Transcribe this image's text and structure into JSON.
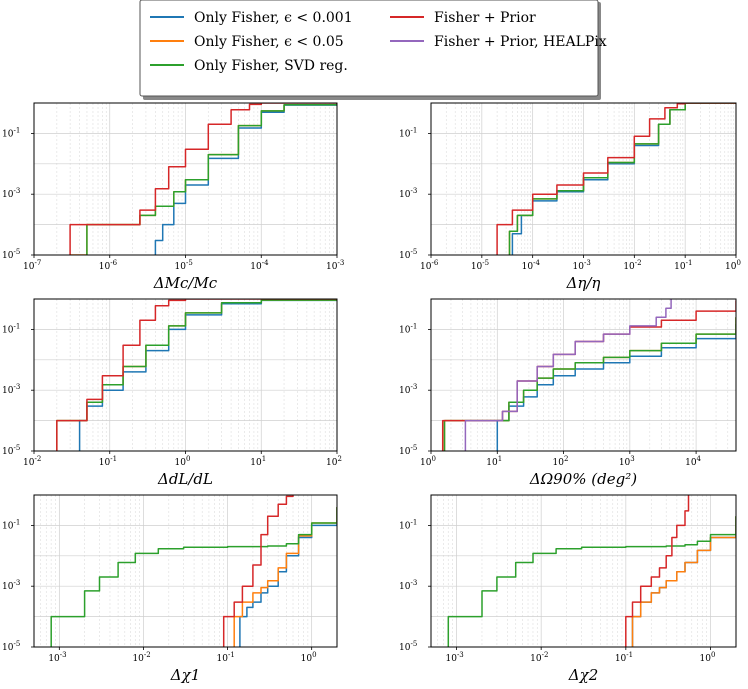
{
  "legend": {
    "entries": [
      {
        "label": "Only Fisher, ϵ < 0.001",
        "color": "#1f77b4"
      },
      {
        "label": "Only Fisher, ϵ < 0.05",
        "color": "#ff7f0e"
      },
      {
        "label": "Only Fisher, SVD reg.",
        "color": "#2ca02c"
      },
      {
        "label": "Fisher + Prior",
        "color": "#d62728"
      },
      {
        "label": "Fisher + Prior, HEALPix",
        "color": "#9467bd"
      }
    ]
  },
  "chart_data": [
    {
      "type": "line",
      "xlabel": "ΔMc/Mc",
      "xscale": "log",
      "yscale": "log",
      "xlim": [
        1e-07,
        0.001
      ],
      "ylim": [
        1e-05,
        1
      ],
      "x_tick_labels": [
        "10^-7",
        "10^-6",
        "10^-5",
        "10^-4",
        "10^-3"
      ],
      "y_tick_labels": [
        "10^-5",
        "10^-3",
        "10^-1"
      ],
      "grid": true,
      "series": [
        {
          "name": "Only Fisher, ϵ < 0.001",
          "color": "#1f77b4",
          "x": [
            4e-06,
            4e-06,
            5e-06,
            7e-06,
            1e-05,
            2e-05,
            5e-05,
            0.0001,
            0.0002,
            0.001
          ],
          "y": [
            1e-05,
            3e-05,
            0.0001,
            0.0005,
            0.002,
            0.015,
            0.15,
            0.5,
            0.85,
            1.0
          ]
        },
        {
          "name": "Only Fisher, ϵ < 0.05",
          "color": "#ff7f0e",
          "x": [
            3e-07,
            5e-07,
            1e-06,
            2e-06,
            2.5e-06,
            4e-06,
            7e-06,
            1e-05,
            2e-05,
            5e-05,
            0.0001,
            0.0002,
            0.001
          ],
          "y": [
            1e-05,
            0.0001,
            0.0001,
            0.0001,
            0.0002,
            0.0004,
            0.0012,
            0.003,
            0.02,
            0.18,
            0.55,
            0.88,
            1.0
          ]
        },
        {
          "name": "Only Fisher, SVD reg.",
          "color": "#2ca02c",
          "x": [
            5e-07,
            5e-07,
            1e-06,
            2e-06,
            2.5e-06,
            4e-06,
            7e-06,
            1e-05,
            2e-05,
            5e-05,
            0.0001,
            0.0002,
            0.001
          ],
          "y": [
            1e-05,
            0.0001,
            0.0001,
            0.0001,
            0.0002,
            0.0004,
            0.0012,
            0.003,
            0.02,
            0.18,
            0.55,
            0.88,
            1.0
          ]
        },
        {
          "name": "Fisher + Prior",
          "color": "#d62728",
          "x": [
            3e-07,
            3e-07,
            1e-06,
            2e-06,
            2.5e-06,
            4e-06,
            6e-06,
            1e-05,
            2e-05,
            4e-05,
            7e-05,
            0.0001,
            0.0003,
            0.001
          ],
          "y": [
            1e-05,
            0.0001,
            0.0001,
            0.0001,
            0.0003,
            0.0015,
            0.008,
            0.03,
            0.2,
            0.6,
            0.9,
            1.0,
            1.0,
            1.0
          ]
        }
      ]
    },
    {
      "type": "line",
      "xlabel": "Δη/η",
      "xscale": "log",
      "yscale": "log",
      "xlim": [
        1e-06,
        1
      ],
      "ylim": [
        1e-05,
        1
      ],
      "x_tick_labels": [
        "10^-6",
        "10^-5",
        "10^-4",
        "10^-3",
        "10^-2",
        "10^-1",
        "10^0"
      ],
      "y_tick_labels": [
        "10^-5",
        "10^-3",
        "10^-1"
      ],
      "grid": true,
      "series": [
        {
          "name": "Only Fisher, ϵ < 0.001",
          "color": "#1f77b4",
          "x": [
            4e-05,
            4e-05,
            6e-05,
            0.0001,
            0.0003,
            0.001,
            0.003,
            0.01,
            0.03,
            0.05,
            0.1,
            1
          ],
          "y": [
            1e-05,
            5e-05,
            0.0002,
            0.0006,
            0.0012,
            0.003,
            0.01,
            0.04,
            0.2,
            0.6,
            1.0,
            1.0
          ]
        },
        {
          "name": "Only Fisher, ϵ < 0.05",
          "color": "#ff7f0e",
          "x": [
            3.5e-05,
            3.5e-05,
            5e-05,
            0.0001,
            0.0003,
            0.001,
            0.003,
            0.01,
            0.03,
            0.05,
            0.1,
            1
          ],
          "y": [
            1e-05,
            6e-05,
            0.0002,
            0.0007,
            0.0013,
            0.0035,
            0.011,
            0.045,
            0.2,
            0.6,
            1.0,
            1.0
          ]
        },
        {
          "name": "Only Fisher, SVD reg.",
          "color": "#2ca02c",
          "x": [
            3.5e-05,
            3.5e-05,
            5e-05,
            0.0001,
            0.0003,
            0.001,
            0.003,
            0.01,
            0.03,
            0.05,
            0.1,
            1
          ],
          "y": [
            1e-05,
            6e-05,
            0.0002,
            0.0007,
            0.0013,
            0.0035,
            0.011,
            0.045,
            0.2,
            0.6,
            1.0,
            1.0
          ]
        },
        {
          "name": "Fisher + Prior",
          "color": "#d62728",
          "x": [
            2e-05,
            2e-05,
            4e-05,
            0.0001,
            0.0003,
            0.001,
            0.003,
            0.01,
            0.02,
            0.04,
            0.07,
            0.1,
            1
          ],
          "y": [
            1e-05,
            0.0001,
            0.0003,
            0.001,
            0.002,
            0.005,
            0.016,
            0.08,
            0.3,
            0.7,
            0.95,
            1.0,
            1.0
          ]
        }
      ]
    },
    {
      "type": "line",
      "xlabel": "ΔdL/dL",
      "xscale": "log",
      "yscale": "log",
      "xlim": [
        0.01,
        100
      ],
      "ylim": [
        1e-05,
        1
      ],
      "x_tick_labels": [
        "10^-2",
        "10^-1",
        "10^0",
        "10^1",
        "10^2"
      ],
      "y_tick_labels": [
        "10^-5",
        "10^-3",
        "10^-1"
      ],
      "grid": true,
      "series": [
        {
          "name": "Only Fisher, ϵ < 0.001",
          "color": "#1f77b4",
          "x": [
            0.04,
            0.04,
            0.05,
            0.08,
            0.15,
            0.3,
            0.6,
            1,
            3,
            10,
            100
          ],
          "y": [
            1e-05,
            0.0001,
            0.0003,
            0.001,
            0.004,
            0.02,
            0.1,
            0.3,
            0.7,
            0.9,
            1.0
          ]
        },
        {
          "name": "Only Fisher, ϵ < 0.05",
          "color": "#ff7f0e",
          "x": [
            0.02,
            0.02,
            0.04,
            0.05,
            0.08,
            0.15,
            0.3,
            0.6,
            1,
            3,
            10,
            100
          ],
          "y": [
            1e-05,
            0.0001,
            0.0001,
            0.0004,
            0.0015,
            0.006,
            0.03,
            0.13,
            0.35,
            0.75,
            0.92,
            1.0
          ]
        },
        {
          "name": "Only Fisher, SVD reg.",
          "color": "#2ca02c",
          "x": [
            0.02,
            0.02,
            0.04,
            0.05,
            0.08,
            0.15,
            0.3,
            0.6,
            1,
            3,
            10,
            100
          ],
          "y": [
            1e-05,
            0.0001,
            0.0001,
            0.0004,
            0.0015,
            0.006,
            0.03,
            0.13,
            0.35,
            0.75,
            0.92,
            1.0
          ]
        },
        {
          "name": "Fisher + Prior",
          "color": "#d62728",
          "x": [
            0.02,
            0.02,
            0.04,
            0.05,
            0.08,
            0.15,
            0.25,
            0.4,
            0.6,
            1,
            100
          ],
          "y": [
            1e-05,
            0.0001,
            0.0001,
            0.0005,
            0.003,
            0.03,
            0.2,
            0.6,
            0.9,
            1.0,
            1.0
          ]
        }
      ]
    },
    {
      "type": "line",
      "xlabel": "ΔΩ90% (deg²)",
      "xscale": "log",
      "yscale": "log",
      "xlim": [
        1,
        40000
      ],
      "ylim": [
        1e-05,
        1
      ],
      "x_tick_labels": [
        "10^0",
        "10^1",
        "10^2",
        "10^3",
        "10^4"
      ],
      "y_tick_labels": [
        "10^-5",
        "10^-3",
        "10^-1"
      ],
      "grid": true,
      "series": [
        {
          "name": "Only Fisher, ϵ < 0.001",
          "color": "#1f77b4",
          "x": [
            10,
            10,
            15,
            25,
            40,
            70,
            150,
            400,
            1000,
            3000,
            10000,
            40000
          ],
          "y": [
            1e-05,
            0.0001,
            0.0003,
            0.0006,
            0.0015,
            0.003,
            0.005,
            0.008,
            0.013,
            0.025,
            0.05,
            0.15
          ]
        },
        {
          "name": "Only Fisher, ϵ < 0.05",
          "color": "#ff7f0e",
          "x": [
            1.6,
            1.6,
            8,
            10,
            15,
            25,
            40,
            70,
            150,
            400,
            1000,
            3000,
            10000,
            40000
          ],
          "y": [
            1e-05,
            0.0001,
            0.0001,
            0.0001,
            0.0004,
            0.001,
            0.0025,
            0.005,
            0.008,
            0.012,
            0.02,
            0.035,
            0.07,
            0.25
          ]
        },
        {
          "name": "Only Fisher, SVD reg.",
          "color": "#2ca02c",
          "x": [
            1.6,
            1.6,
            8,
            10,
            15,
            25,
            40,
            70,
            150,
            400,
            1000,
            3000,
            10000,
            40000
          ],
          "y": [
            1e-05,
            0.0001,
            0.0001,
            0.0001,
            0.0004,
            0.001,
            0.0025,
            0.005,
            0.008,
            0.012,
            0.02,
            0.035,
            0.07,
            0.25
          ]
        },
        {
          "name": "Fisher + Prior",
          "color": "#d62728",
          "x": [
            1.5,
            1.5,
            10,
            12,
            20,
            40,
            70,
            150,
            400,
            1000,
            3000,
            10000,
            40000
          ],
          "y": [
            1e-05,
            0.0001,
            0.0001,
            0.0002,
            0.002,
            0.006,
            0.015,
            0.04,
            0.07,
            0.12,
            0.2,
            0.4,
            0.9
          ]
        },
        {
          "name": "Fisher + Prior, HEALPix",
          "color": "#9467bd",
          "x": [
            3.3,
            3.3,
            10,
            12,
            20,
            40,
            70,
            150,
            400,
            1000,
            2500,
            3500,
            4200
          ],
          "y": [
            1e-05,
            0.0001,
            0.0001,
            0.0002,
            0.002,
            0.006,
            0.015,
            0.04,
            0.07,
            0.13,
            0.25,
            0.5,
            1.0
          ]
        }
      ]
    },
    {
      "type": "line",
      "xlabel": "Δχ1",
      "xscale": "log",
      "yscale": "log",
      "xlim": [
        0.0005,
        2
      ],
      "ylim": [
        1e-05,
        1
      ],
      "x_tick_labels": [
        "10^-3",
        "10^-2",
        "10^-1",
        "10^0"
      ],
      "y_tick_labels": [
        "10^-5",
        "10^-3",
        "10^-1"
      ],
      "grid": true,
      "series": [
        {
          "name": "Only Fisher, ϵ < 0.001",
          "color": "#1f77b4",
          "x": [
            0.14,
            0.14,
            0.17,
            0.2,
            0.25,
            0.3,
            0.4,
            0.5,
            0.7,
            1,
            2
          ],
          "y": [
            1e-05,
            0.0001,
            0.0002,
            0.0003,
            0.0006,
            0.001,
            0.003,
            0.01,
            0.04,
            0.1,
            0.4
          ]
        },
        {
          "name": "Only Fisher, ϵ < 0.05",
          "color": "#ff7f0e",
          "x": [
            0.12,
            0.12,
            0.15,
            0.2,
            0.25,
            0.3,
            0.4,
            0.5,
            0.7,
            1,
            2
          ],
          "y": [
            1e-05,
            0.0001,
            0.0003,
            0.0006,
            0.0009,
            0.0015,
            0.004,
            0.012,
            0.045,
            0.12,
            0.4
          ]
        },
        {
          "name": "Only Fisher, SVD reg.",
          "color": "#2ca02c",
          "x": [
            0.0008,
            0.0008,
            0.001,
            0.002,
            0.003,
            0.005,
            0.008,
            0.015,
            0.03,
            0.1,
            0.3,
            0.5,
            0.7,
            1,
            2
          ],
          "y": [
            1e-05,
            0.0001,
            0.0001,
            0.0007,
            0.002,
            0.006,
            0.012,
            0.017,
            0.019,
            0.02,
            0.021,
            0.025,
            0.05,
            0.12,
            0.4
          ]
        },
        {
          "name": "Fisher + Prior",
          "color": "#d62728",
          "x": [
            0.09,
            0.09,
            0.12,
            0.15,
            0.2,
            0.25,
            0.3,
            0.4,
            0.5,
            0.6
          ],
          "y": [
            1e-05,
            0.0001,
            0.0003,
            0.001,
            0.005,
            0.05,
            0.2,
            0.5,
            0.9,
            1.0
          ]
        }
      ]
    },
    {
      "type": "line",
      "xlabel": "Δχ2",
      "xscale": "log",
      "yscale": "log",
      "xlim": [
        0.0005,
        2
      ],
      "ylim": [
        1e-05,
        1
      ],
      "x_tick_labels": [
        "10^-3",
        "10^-2",
        "10^-1",
        "10^0"
      ],
      "y_tick_labels": [
        "10^-5",
        "10^-3",
        "10^-1"
      ],
      "grid": true,
      "series": [
        {
          "name": "Only Fisher, ϵ < 0.001",
          "color": "#1f77b4",
          "x": [
            0.12,
            0.12,
            0.15,
            0.2,
            0.25,
            0.3,
            0.4,
            0.5,
            0.7,
            1,
            2
          ],
          "y": [
            1e-05,
            0.0001,
            0.0003,
            0.0006,
            0.0009,
            0.0015,
            0.003,
            0.006,
            0.015,
            0.04,
            0.2
          ]
        },
        {
          "name": "Only Fisher, ϵ < 0.05",
          "color": "#ff7f0e",
          "x": [
            0.12,
            0.12,
            0.15,
            0.2,
            0.25,
            0.3,
            0.4,
            0.5,
            0.7,
            1,
            2
          ],
          "y": [
            1e-05,
            0.0001,
            0.0003,
            0.0006,
            0.0009,
            0.0015,
            0.003,
            0.006,
            0.015,
            0.04,
            0.2
          ]
        },
        {
          "name": "Only Fisher, SVD reg.",
          "color": "#2ca02c",
          "x": [
            0.0008,
            0.0008,
            0.001,
            0.002,
            0.003,
            0.005,
            0.008,
            0.015,
            0.03,
            0.1,
            0.3,
            0.5,
            0.7,
            1,
            2
          ],
          "y": [
            1e-05,
            0.0001,
            0.0001,
            0.0007,
            0.002,
            0.006,
            0.012,
            0.017,
            0.019,
            0.02,
            0.021,
            0.023,
            0.03,
            0.05,
            0.2
          ]
        },
        {
          "name": "Fisher + Prior",
          "color": "#d62728",
          "x": [
            0.1,
            0.1,
            0.12,
            0.15,
            0.2,
            0.25,
            0.3,
            0.35,
            0.4,
            0.5,
            0.55
          ],
          "y": [
            1e-05,
            0.0001,
            0.0003,
            0.001,
            0.002,
            0.004,
            0.01,
            0.04,
            0.1,
            0.3,
            1.0
          ]
        }
      ]
    }
  ]
}
